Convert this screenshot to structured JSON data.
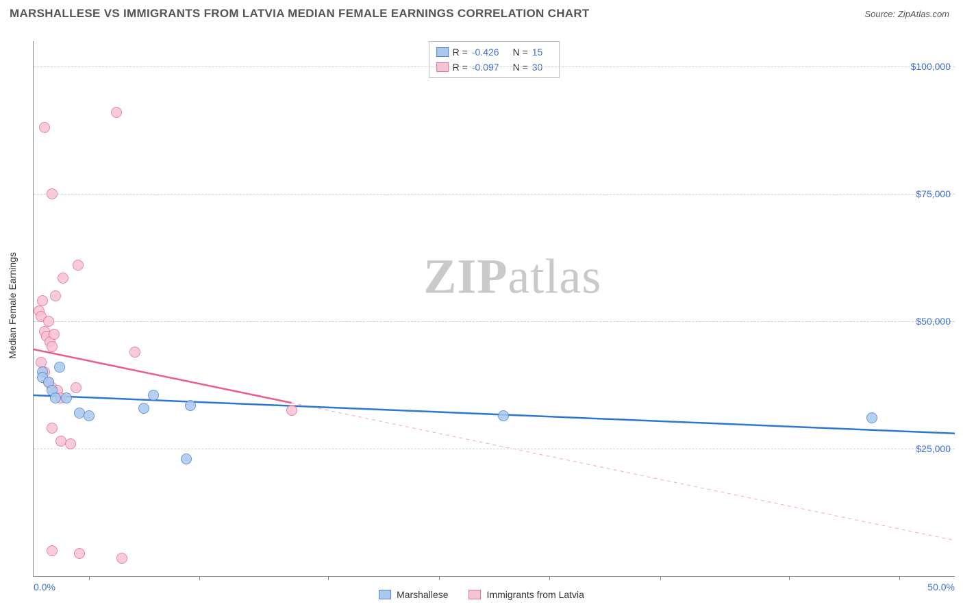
{
  "header": {
    "title": "MARSHALLESE VS IMMIGRANTS FROM LATVIA MEDIAN FEMALE EARNINGS CORRELATION CHART",
    "source": "Source: ZipAtlas.com"
  },
  "watermark": {
    "zip": "ZIP",
    "atlas": "atlas"
  },
  "chart": {
    "type": "scatter",
    "ylabel": "Median Female Earnings",
    "background_color": "#ffffff",
    "grid_color": "#d0d0d0",
    "axis_color": "#888888",
    "tick_label_color": "#3b6fd6",
    "text_color": "#333333",
    "label_fontsize": 14,
    "title_fontsize": 17,
    "xlim": [
      0,
      50
    ],
    "ylim": [
      0,
      105000
    ],
    "y_gridlines": [
      25000,
      50000,
      75000,
      100000
    ],
    "y_ticklabels": [
      "$25,000",
      "$50,000",
      "$75,000",
      "$100,000"
    ],
    "x_minor_ticks_pct": [
      3,
      9,
      16,
      22,
      28,
      34,
      41,
      47
    ],
    "x_ticklabels": [
      {
        "pct": 0,
        "label": "0.0%"
      },
      {
        "pct": 50,
        "label": "50.0%"
      }
    ],
    "marker_radius": 8,
    "marker_stroke_width": 1.2,
    "line_width": 2.5,
    "series": {
      "blue": {
        "name": "Marshallese",
        "fill": "#a9c8ef",
        "stroke": "#4f87d2",
        "line_color": "#2e77d0",
        "R_label": "R =",
        "R": "-0.426",
        "N_label": "N =",
        "N": "15",
        "trend": {
          "x1": 0,
          "y1": 35500,
          "x2": 50,
          "y2": 28000,
          "dashed_from_pct": null
        },
        "points": [
          {
            "x": 0.5,
            "y": 40000
          },
          {
            "x": 0.5,
            "y": 39000
          },
          {
            "x": 0.8,
            "y": 38000
          },
          {
            "x": 1.0,
            "y": 36500
          },
          {
            "x": 1.2,
            "y": 35000
          },
          {
            "x": 1.4,
            "y": 41000
          },
          {
            "x": 1.8,
            "y": 35000
          },
          {
            "x": 2.5,
            "y": 32000
          },
          {
            "x": 3.0,
            "y": 31500
          },
          {
            "x": 6.0,
            "y": 33000
          },
          {
            "x": 6.5,
            "y": 35500
          },
          {
            "x": 8.5,
            "y": 33500
          },
          {
            "x": 8.3,
            "y": 23000
          },
          {
            "x": 25.5,
            "y": 31500
          },
          {
            "x": 45.5,
            "y": 31000
          }
        ]
      },
      "pink": {
        "name": "Immigrants from Latvia",
        "fill": "#f6c3d3",
        "stroke": "#e66f99",
        "line_color": "#e85d8a",
        "R_label": "R =",
        "R": "-0.097",
        "N_label": "N =",
        "N": "30",
        "trend": {
          "x1": 0,
          "y1": 44500,
          "x2": 50,
          "y2": 7000,
          "dashed_from_pct": 14
        },
        "points": [
          {
            "x": 0.3,
            "y": 52000
          },
          {
            "x": 0.4,
            "y": 51000
          },
          {
            "x": 0.5,
            "y": 54000
          },
          {
            "x": 0.6,
            "y": 48000
          },
          {
            "x": 0.7,
            "y": 47000
          },
          {
            "x": 0.8,
            "y": 50000
          },
          {
            "x": 0.9,
            "y": 46000
          },
          {
            "x": 1.0,
            "y": 45000
          },
          {
            "x": 1.1,
            "y": 47500
          },
          {
            "x": 0.4,
            "y": 42000
          },
          {
            "x": 0.6,
            "y": 40000
          },
          {
            "x": 0.8,
            "y": 38000
          },
          {
            "x": 1.0,
            "y": 37000
          },
          {
            "x": 1.3,
            "y": 36500
          },
          {
            "x": 1.5,
            "y": 35000
          },
          {
            "x": 2.3,
            "y": 37000
          },
          {
            "x": 1.2,
            "y": 55000
          },
          {
            "x": 1.6,
            "y": 58500
          },
          {
            "x": 2.4,
            "y": 61000
          },
          {
            "x": 1.0,
            "y": 75000
          },
          {
            "x": 0.6,
            "y": 88000
          },
          {
            "x": 4.5,
            "y": 91000
          },
          {
            "x": 5.5,
            "y": 44000
          },
          {
            "x": 1.0,
            "y": 29000
          },
          {
            "x": 1.5,
            "y": 26500
          },
          {
            "x": 2.0,
            "y": 26000
          },
          {
            "x": 1.0,
            "y": 5000
          },
          {
            "x": 2.5,
            "y": 4500
          },
          {
            "x": 4.8,
            "y": 3500
          },
          {
            "x": 14.0,
            "y": 32500
          }
        ]
      }
    }
  }
}
